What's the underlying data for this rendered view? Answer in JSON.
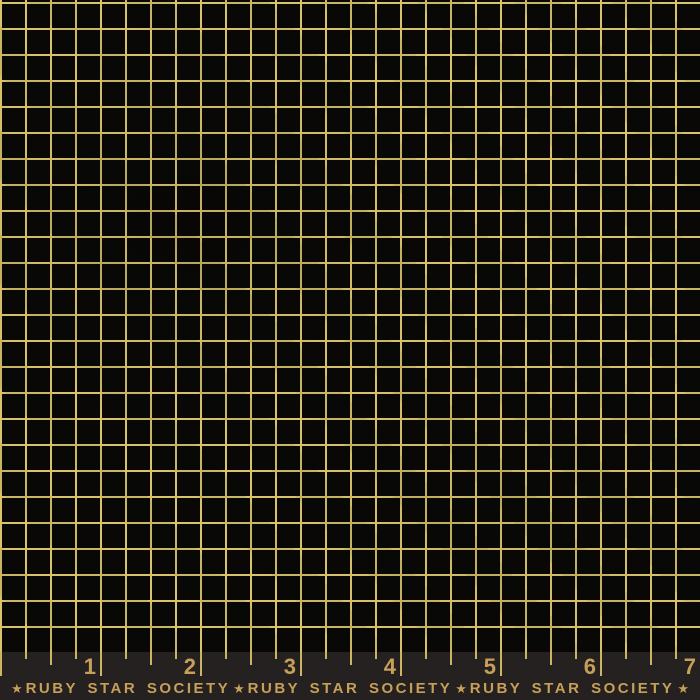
{
  "colors": {
    "fabric_black": "#090807",
    "selvage_black": "#242120",
    "grid_gold": "#d8c369",
    "tick_gold": "#cdb462",
    "brand_gold": "#c79f58"
  },
  "ruler": {
    "numbers": [
      "1",
      "2",
      "3",
      "4",
      "5",
      "6",
      "7"
    ]
  },
  "selvage": {
    "line": [
      "★",
      "RUBY STAR SOCIETY",
      "★",
      "RUBY STAR SOCIETY",
      "★",
      "RUBY STAR SOCIETY",
      "★"
    ]
  }
}
